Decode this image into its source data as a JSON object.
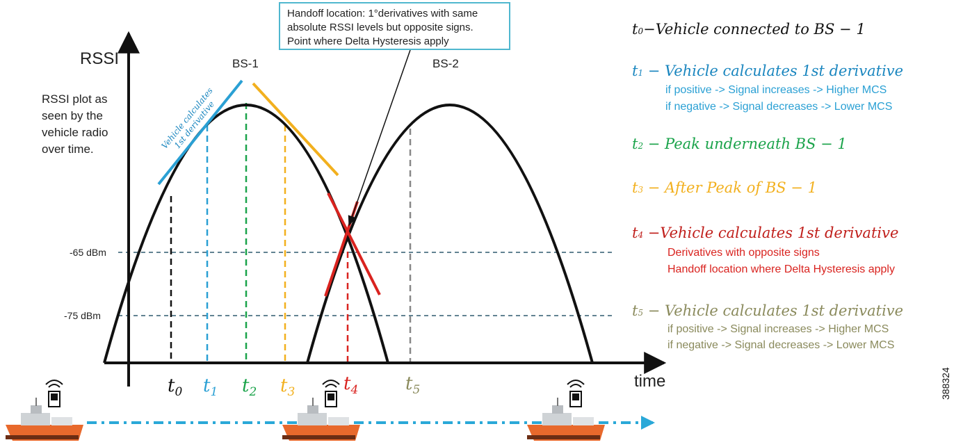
{
  "colors": {
    "black": "#111111",
    "blue": "#2aa0d4",
    "green": "#1aa34a",
    "yellow": "#f2b01e",
    "red": "#d9231f",
    "olive": "#8a8a5c",
    "grey": "#888888",
    "title_blue": "#1a86bf",
    "threshold_line": "#2e5a6e",
    "ship_path": "#2aa8d8"
  },
  "axes": {
    "y_label": "RSSI",
    "x_label": "time",
    "threshold_high": "-65 dBm",
    "threshold_low": "-75 dBm"
  },
  "curves": {
    "bs1_label": "BS-1",
    "bs2_label": "BS-2"
  },
  "description": {
    "line1": "RSSI plot as",
    "line2": "seen by the",
    "line3": "vehicle radio",
    "line4": "over time."
  },
  "tangent_annotation": {
    "line1": "Vehicle calculates",
    "line2": "1st derivative"
  },
  "callout": {
    "line1": "Handoff location: 1°derivatives with same",
    "line2": "absolute RSSI levels but opposite signs.",
    "line3": "Point where Delta Hysteresis apply"
  },
  "time_markers": [
    {
      "symbol": "t",
      "sub": "0"
    },
    {
      "symbol": "t",
      "sub": "1"
    },
    {
      "symbol": "t",
      "sub": "2"
    },
    {
      "symbol": "t",
      "sub": "3"
    },
    {
      "symbol": "t",
      "sub": "4"
    },
    {
      "symbol": "t",
      "sub": "5"
    }
  ],
  "legend": {
    "t0": {
      "sym": "t",
      "sub": "0",
      "text": "−Vehicle connected to BS − 1"
    },
    "t1": {
      "sym": "t",
      "sub": "1",
      "text": " − Vehicle calculates 1st derivative",
      "line1": "if positive -> Signal increases -> Higher MCS",
      "line2": "if negative -> Signal decreases -> Lower MCS"
    },
    "t2": {
      "sym": "t",
      "sub": "2",
      "text": " − Peak underneath BS − 1"
    },
    "t3": {
      "sym": "t",
      "sub": "3",
      "text": " − After Peak of BS − 1"
    },
    "t4": {
      "sym": "t",
      "sub": "4",
      "text": " −Vehicle calculates 1st derivative",
      "line1": "Derivatives with opposite signs",
      "line2": "Handoff location where Delta Hysteresis apply"
    },
    "t5": {
      "sym": "t",
      "sub": "5",
      "text": " − Vehicle calculates 1st derivative",
      "line1": "if positive -> Signal increases -> Higher MCS",
      "line2": "if negative -> Signal decreases -> Lower MCS"
    }
  },
  "figure_id": "388324"
}
